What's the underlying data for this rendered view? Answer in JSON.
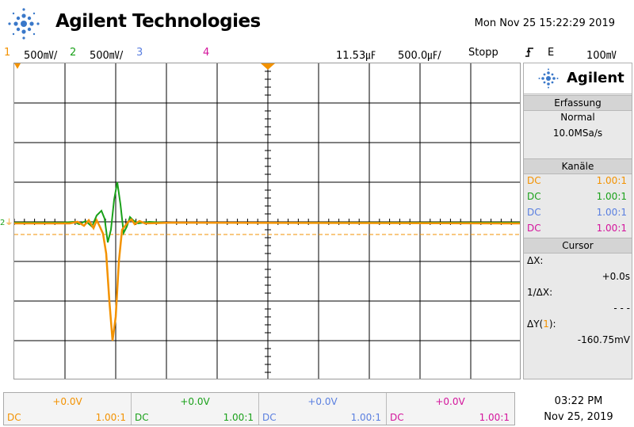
{
  "header": {
    "brand": "Agilent Technologies",
    "datetime": "Mon Nov 25 15:22:29 2019"
  },
  "topbar": {
    "ch1_num": "1",
    "ch1_scale": "500㎷/",
    "ch2_num": "2",
    "ch2_scale": "500㎷/",
    "ch3_num": "3",
    "ch4_num": "4",
    "delay": "11.53㎌",
    "timebase": "500.0㎌/",
    "run_state": "Stopp",
    "trigger_source": "E",
    "trigger_level": "100㎷"
  },
  "colors": {
    "ch1": "#f39200",
    "ch2": "#1aa11a",
    "ch3": "#5a7fe0",
    "ch4": "#d4149c"
  },
  "sidebar": {
    "logo": "Agilent",
    "acq_title": "Erfassung",
    "acq_mode": "Normal",
    "acq_rate": "10.0MSa/s",
    "channels_title": "Kanäle",
    "channels": [
      {
        "coupling": "DC",
        "probe": "1.00:1"
      },
      {
        "coupling": "DC",
        "probe": "1.00:1"
      },
      {
        "coupling": "DC",
        "probe": "1.00:1"
      },
      {
        "coupling": "DC",
        "probe": "1.00:1"
      }
    ],
    "cursor_title": "Cursor",
    "dx_label": "ΔX:",
    "dx_value": "+0.0s",
    "inv_dx_label": "1/ΔX:",
    "inv_dx_value": "- - -",
    "dy_label_a": "ΔY(",
    "dy_label_ch": "1",
    "dy_label_b": "):",
    "dy_value": "-160.75mV"
  },
  "bottom": {
    "channels": [
      {
        "offset": "+0.0V",
        "coupling": "DC",
        "probe": "1.00:1"
      },
      {
        "offset": "+0.0V",
        "coupling": "DC",
        "probe": "1.00:1"
      },
      {
        "offset": "+0.0V",
        "coupling": "DC",
        "probe": "1.00:1"
      },
      {
        "offset": "+0.0V",
        "coupling": "DC",
        "probe": "1.00:1"
      }
    ],
    "time": "03:22 PM",
    "date": "Nov 25, 2019"
  },
  "screen": {
    "ground_marker": "2"
  }
}
